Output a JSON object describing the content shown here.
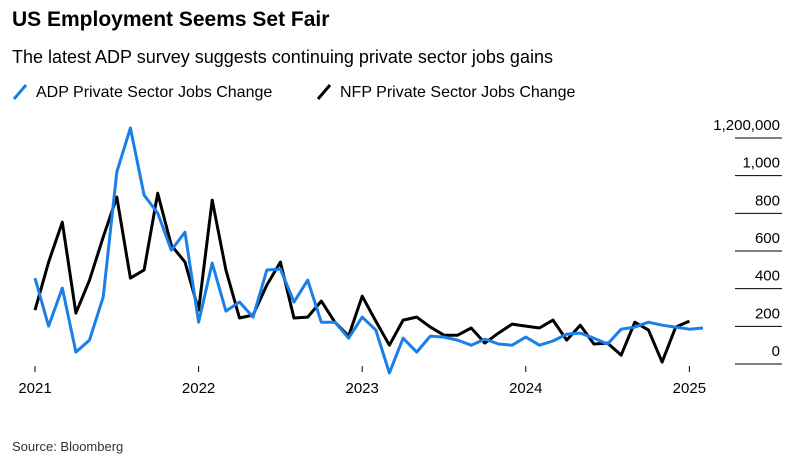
{
  "chart_data": {
    "type": "line",
    "title": "US Employment Seems Set Fair",
    "subtitle": "The latest ADP survey suggests continuing private sector jobs gains",
    "source": "Source: Bloomberg",
    "categories": [
      "2021",
      null,
      null,
      null,
      null,
      null,
      null,
      null,
      null,
      null,
      null,
      null,
      "2022",
      null,
      null,
      null,
      null,
      null,
      null,
      null,
      null,
      null,
      null,
      null,
      "2023",
      null,
      null,
      null,
      null,
      null,
      null,
      null,
      null,
      null,
      null,
      null,
      "2024",
      null,
      null,
      null,
      null,
      null,
      null,
      null,
      null,
      null,
      null,
      null,
      "2025",
      null
    ],
    "series": [
      {
        "name": "ADP Private Sector Jobs Change",
        "color": "#1a7fe8",
        "values": [
          456000,
          201000,
          403000,
          63000,
          127000,
          355000,
          1019000,
          1253000,
          897000,
          801000,
          605000,
          700000,
          222000,
          536000,
          281000,
          329000,
          249000,
          499000,
          504000,
          329000,
          445000,
          222000,
          222000,
          137000,
          249000,
          180000,
          -48000,
          137000,
          63000,
          148000,
          143000,
          127000,
          100000,
          132000,
          106000,
          100000,
          143000,
          100000,
          122000,
          159000,
          164000,
          137000,
          106000,
          185000,
          196000,
          222000,
          206000,
          196000,
          185000,
          191000
        ]
      },
      {
        "name": "NFP Private Sector Jobs Change",
        "color": "#000000",
        "values": [
          286000,
          541000,
          753000,
          270000,
          445000,
          674000,
          886000,
          456000,
          499000,
          907000,
          631000,
          541000,
          286000,
          870000,
          499000,
          244000,
          260000,
          419000,
          541000,
          244000,
          249000,
          334000,
          222000,
          148000,
          360000,
          228000,
          100000,
          233000,
          249000,
          196000,
          153000,
          153000,
          191000,
          111000,
          164000,
          212000,
          201000,
          191000,
          233000,
          127000,
          206000,
          106000,
          111000,
          47000,
          222000,
          180000,
          10000,
          196000,
          228000,
          null
        ]
      }
    ],
    "ylim": [
      -60000,
      1260000
    ],
    "yticks": [
      0,
      {
        "value": 200000,
        "label": "200"
      },
      {
        "value": 400000,
        "label": "400"
      },
      {
        "value": 600000,
        "label": "600"
      },
      {
        "value": 800000,
        "label": "800"
      },
      {
        "value": 1000000,
        "label": "1,000"
      },
      {
        "value": 1200000,
        "label": "1,200,000"
      }
    ],
    "grid": true
  }
}
